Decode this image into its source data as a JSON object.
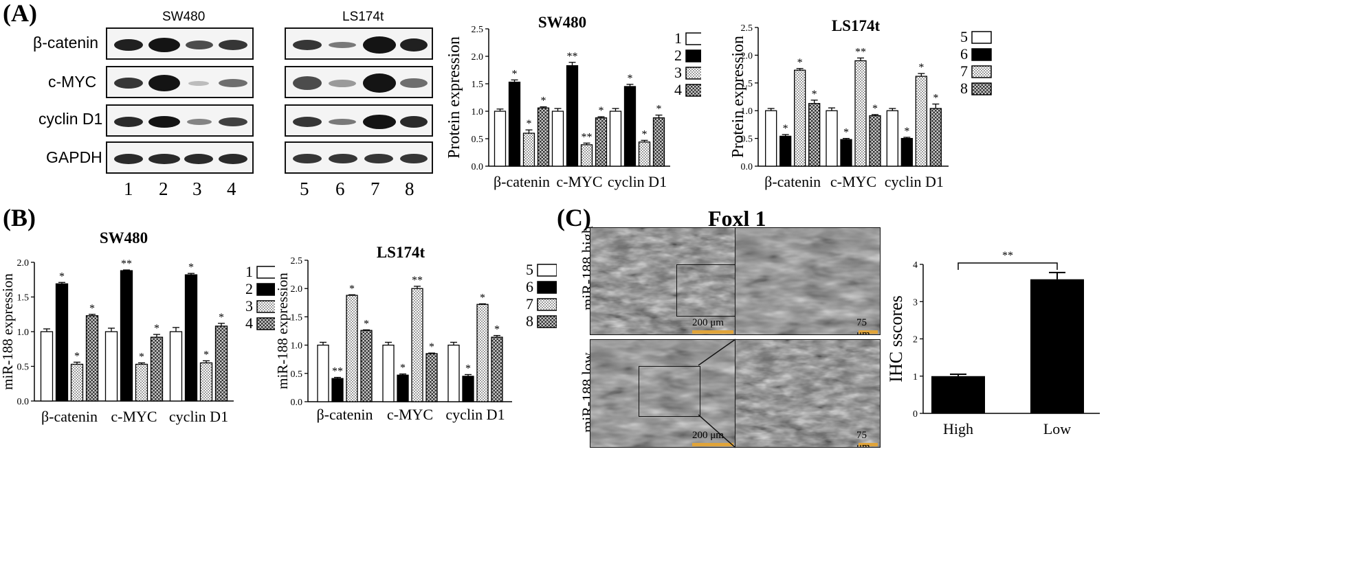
{
  "panel_labels": {
    "a": "(A)",
    "b": "(B)",
    "c": "(C)"
  },
  "western_blots": [
    {
      "title": "SW480",
      "lanes": [
        "1",
        "2",
        "3",
        "4"
      ]
    },
    {
      "title": "LS174t",
      "lanes": [
        "5",
        "6",
        "7",
        "8"
      ]
    }
  ],
  "proteins": [
    "β-catenin",
    "c-MYC",
    "cyclin D1",
    "GAPDH"
  ],
  "ihc": {
    "title": "Foxl 1",
    "rows": [
      {
        "label": "miR-188 high",
        "scale_left": "200 μm",
        "scale_right": "75 μm"
      },
      {
        "label": "miR-188 low",
        "scale_left": "200 μm",
        "scale_right": "75 μm"
      }
    ]
  },
  "chart_data": [
    {
      "id": "a-sw480",
      "type": "bar",
      "title": "SW480",
      "ylabel": "Protein expression",
      "ylim": [
        0,
        2.5
      ],
      "yticks": [
        "0.0",
        "0.5",
        "1.0",
        "1.5",
        "2.0",
        "2.5"
      ],
      "categories": [
        "β-catenin",
        "c-MYC",
        "cyclin D1"
      ],
      "legend": [
        "1",
        "2",
        "3",
        "4"
      ],
      "series": [
        {
          "name": "1",
          "values": [
            1.0,
            1.0,
            1.0
          ],
          "err": [
            0.04,
            0.05,
            0.05
          ],
          "sig": [
            "",
            "",
            ""
          ]
        },
        {
          "name": "2",
          "values": [
            1.53,
            1.83,
            1.45
          ],
          "err": [
            0.04,
            0.06,
            0.04
          ],
          "sig": [
            "*",
            "**",
            "*"
          ]
        },
        {
          "name": "3",
          "values": [
            0.6,
            0.39,
            0.44
          ],
          "err": [
            0.06,
            0.03,
            0.03
          ],
          "sig": [
            "*",
            "**",
            "*"
          ]
        },
        {
          "name": "4",
          "values": [
            1.06,
            0.88,
            0.88
          ],
          "err": [
            0.02,
            0.02,
            0.05
          ],
          "sig": [
            "*",
            "*",
            "*"
          ]
        }
      ]
    },
    {
      "id": "a-ls174t",
      "type": "bar",
      "title": "LS174t",
      "ylabel": "Protein expression",
      "ylim": [
        0,
        2.5
      ],
      "yticks": [
        "0.0",
        "0.5",
        "1.0",
        "1.5",
        "2.0",
        "2.5"
      ],
      "categories": [
        "β-catenin",
        "c-MYC",
        "cyclin D1"
      ],
      "legend": [
        "5",
        "6",
        "7",
        "8"
      ],
      "series": [
        {
          "name": "5",
          "values": [
            1.0,
            1.0,
            1.0
          ],
          "err": [
            0.04,
            0.05,
            0.04
          ],
          "sig": [
            "",
            "",
            ""
          ]
        },
        {
          "name": "6",
          "values": [
            0.54,
            0.48,
            0.5
          ],
          "err": [
            0.03,
            0.02,
            0.02
          ],
          "sig": [
            "*",
            "*",
            "*"
          ]
        },
        {
          "name": "7",
          "values": [
            1.73,
            1.9,
            1.62
          ],
          "err": [
            0.03,
            0.05,
            0.05
          ],
          "sig": [
            "*",
            "**",
            "*"
          ]
        },
        {
          "name": "8",
          "values": [
            1.13,
            0.91,
            1.04
          ],
          "err": [
            0.06,
            0.02,
            0.08
          ],
          "sig": [
            "*",
            "*",
            "*"
          ]
        }
      ]
    },
    {
      "id": "b-sw480",
      "type": "bar",
      "title": "SW480",
      "ylabel": "miR-188 expression",
      "ylim": [
        0,
        2.0
      ],
      "yticks": [
        "0.0",
        "0.5",
        "1.0",
        "1.5",
        "2.0"
      ],
      "categories": [
        "β-catenin",
        "c-MYC",
        "cyclin D1"
      ],
      "legend": [
        "1",
        "2",
        "3",
        "4"
      ],
      "series": [
        {
          "name": "1",
          "values": [
            1.0,
            1.0,
            1.0
          ],
          "err": [
            0.04,
            0.05,
            0.06
          ],
          "sig": [
            "",
            "",
            ""
          ]
        },
        {
          "name": "2",
          "values": [
            1.69,
            1.88,
            1.82
          ],
          "err": [
            0.02,
            0.01,
            0.02
          ],
          "sig": [
            "*",
            "**",
            "*"
          ]
        },
        {
          "name": "3",
          "values": [
            0.53,
            0.53,
            0.55
          ],
          "err": [
            0.03,
            0.02,
            0.03
          ],
          "sig": [
            "*",
            "*",
            "*"
          ]
        },
        {
          "name": "4",
          "values": [
            1.23,
            0.92,
            1.08
          ],
          "err": [
            0.02,
            0.04,
            0.04
          ],
          "sig": [
            "*",
            "*",
            "*"
          ]
        }
      ]
    },
    {
      "id": "b-ls174t",
      "type": "bar",
      "title": "LS174t",
      "ylabel": "miR-188 expression",
      "ylim": [
        0,
        2.5
      ],
      "yticks": [
        "0.0",
        "0.5",
        "1.0",
        "1.5",
        "2.0",
        "2.5"
      ],
      "categories": [
        "β-catenin",
        "c-MYC",
        "cyclin D1"
      ],
      "legend": [
        "5",
        "6",
        "7",
        "8"
      ],
      "series": [
        {
          "name": "5",
          "values": [
            1.0,
            1.0,
            1.0
          ],
          "err": [
            0.05,
            0.05,
            0.05
          ],
          "sig": [
            "",
            "",
            ""
          ]
        },
        {
          "name": "6",
          "values": [
            0.41,
            0.47,
            0.45
          ],
          "err": [
            0.02,
            0.02,
            0.03
          ],
          "sig": [
            "**",
            "*",
            "*"
          ]
        },
        {
          "name": "7",
          "values": [
            1.88,
            2.0,
            1.72
          ],
          "err": [
            0.01,
            0.04,
            0.01
          ],
          "sig": [
            "*",
            "**",
            "*"
          ]
        },
        {
          "name": "8",
          "values": [
            1.26,
            0.85,
            1.14
          ],
          "err": [
            0.01,
            0.01,
            0.03
          ],
          "sig": [
            "*",
            "*",
            "*"
          ]
        }
      ]
    },
    {
      "id": "c-ihc",
      "type": "bar",
      "title": "",
      "ylabel": "IHC sscores",
      "ylim": [
        0,
        4
      ],
      "yticks": [
        "0",
        "1",
        "2",
        "3",
        "4"
      ],
      "categories": [
        "High",
        "Low"
      ],
      "values": [
        1.0,
        3.6
      ],
      "err": [
        0.05,
        0.18
      ],
      "significance": "**"
    }
  ]
}
